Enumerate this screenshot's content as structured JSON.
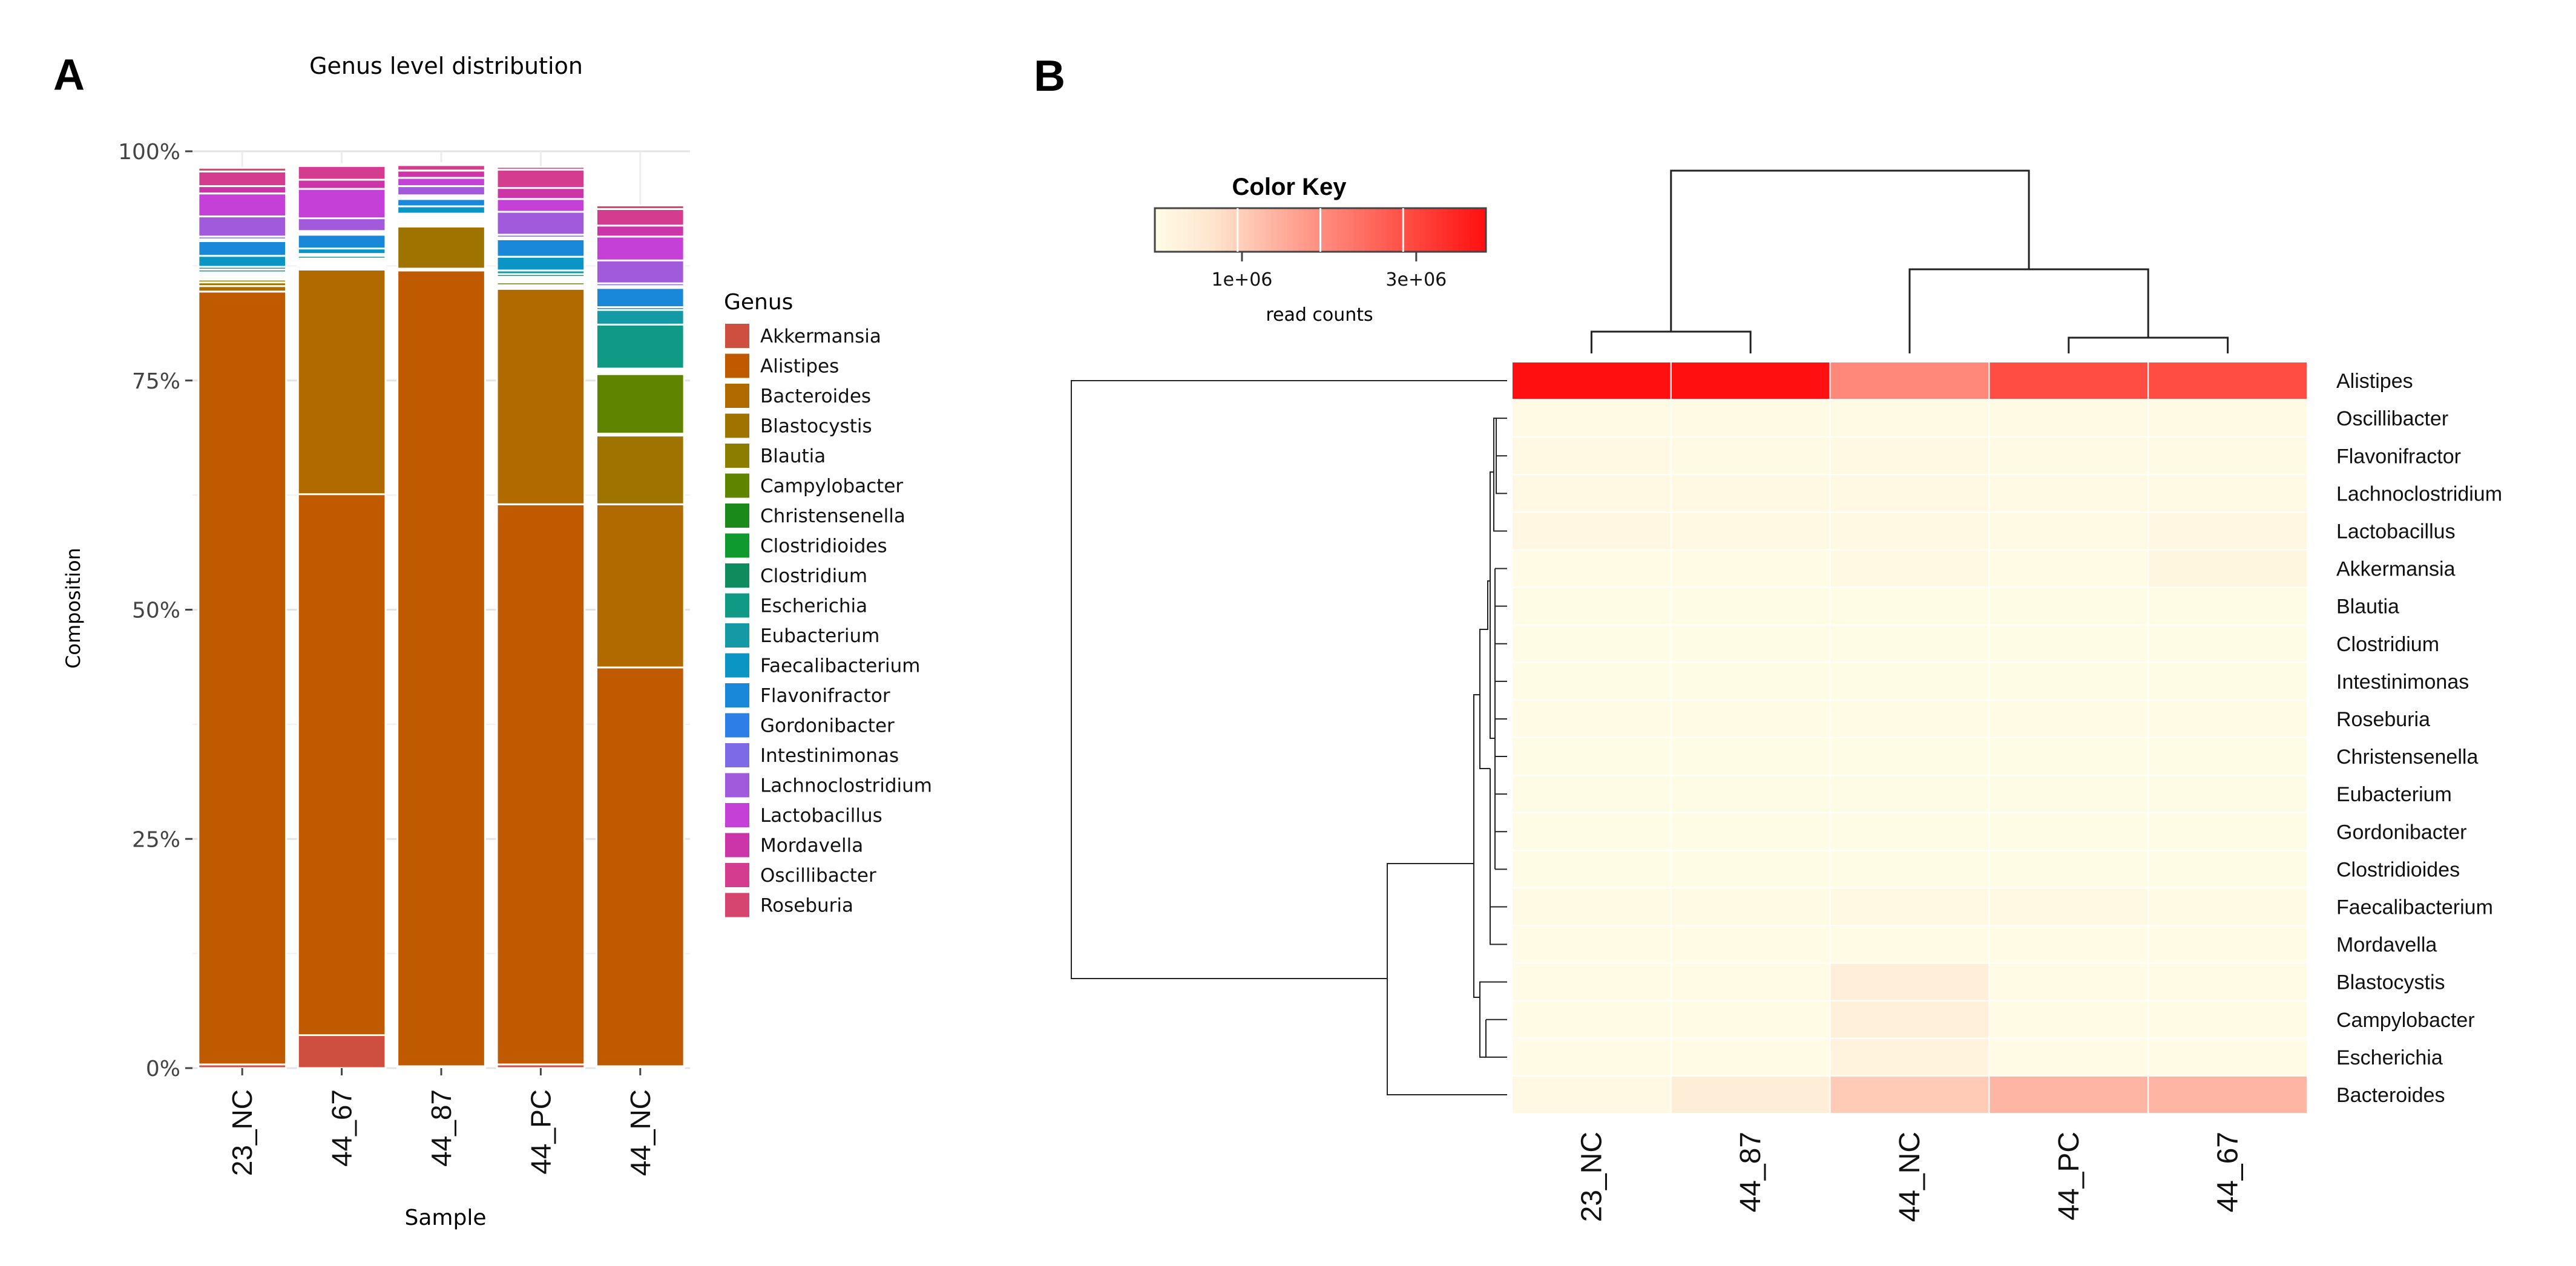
{
  "panel_labels": {
    "a": "A",
    "b": "B"
  },
  "chart_data": [
    {
      "type": "bar",
      "stacked": true,
      "title": "Genus  level distribution",
      "xlabel": "Sample",
      "ylabel": "Composition",
      "ylim": [
        0,
        1
      ],
      "yticks": [
        0,
        0.25,
        0.5,
        0.75,
        1.0
      ],
      "ytick_labels": [
        "0%",
        "25%",
        "50%",
        "75%",
        "100%"
      ],
      "grid": true,
      "legend_position": "right",
      "legend_title": "Genus",
      "categories": [
        "23_NC",
        "44_67",
        "44_87",
        "44_PC",
        "44_NC"
      ],
      "series": [
        {
          "name": "Akkermansia",
          "color": "#CE4E3F",
          "values": [
            0.004,
            0.036,
            0.002,
            0.004,
            0.002
          ]
        },
        {
          "name": "Alistipes",
          "color": "#C05A00",
          "values": [
            0.843,
            0.59,
            0.868,
            0.611,
            0.435
          ]
        },
        {
          "name": "Bacteroides",
          "color": "#B06A00",
          "values": [
            0.006,
            0.245,
            0.002,
            0.235,
            0.178
          ]
        },
        {
          "name": "Blastocystis",
          "color": "#9E7300",
          "values": [
            0.004,
            0.002,
            0.046,
            0.002,
            0.075
          ]
        },
        {
          "name": "Blautia",
          "color": "#8C7D00",
          "values": [
            0.003,
            0.002,
            0.002,
            0.002,
            0.002
          ]
        },
        {
          "name": "Campylobacter",
          "color": "#5F8400",
          "values": [
            0.002,
            0.002,
            0.002,
            0.003,
            0.065
          ]
        },
        {
          "name": "Christensenella",
          "color": "#1A8A1A",
          "values": [
            0.002,
            0.002,
            0.002,
            0.002,
            0.002
          ]
        },
        {
          "name": "Clostridioides",
          "color": "#0E9A2E",
          "values": [
            0.002,
            0.002,
            0.002,
            0.002,
            0.002
          ]
        },
        {
          "name": "Clostridium",
          "color": "#0F8C5E",
          "values": [
            0.002,
            0.002,
            0.002,
            0.002,
            0.002
          ]
        },
        {
          "name": "Escherichia",
          "color": "#0E9A84",
          "values": [
            0.003,
            0.003,
            0.002,
            0.003,
            0.048
          ]
        },
        {
          "name": "Eubacterium",
          "color": "#139AA4",
          "values": [
            0.003,
            0.002,
            0.002,
            0.004,
            0.016
          ]
        },
        {
          "name": "Faecalibacterium",
          "color": "#0B95C5",
          "values": [
            0.012,
            0.006,
            0.008,
            0.015,
            0.003
          ]
        },
        {
          "name": "Flavonifractor",
          "color": "#1A88D8",
          "values": [
            0.016,
            0.015,
            0.008,
            0.019,
            0.021
          ]
        },
        {
          "name": "Gordonibacter",
          "color": "#2B7FE6",
          "values": [
            0.002,
            0.002,
            0.002,
            0.002,
            0.002
          ]
        },
        {
          "name": "Intestinimonas",
          "color": "#7C6BE4",
          "values": [
            0.003,
            0.002,
            0.002,
            0.003,
            0.003
          ]
        },
        {
          "name": "Lachnoclostridium",
          "color": "#A25ADD",
          "values": [
            0.022,
            0.014,
            0.01,
            0.025,
            0.025
          ]
        },
        {
          "name": "Lactobacillus",
          "color": "#C440D6",
          "values": [
            0.025,
            0.032,
            0.009,
            0.014,
            0.026
          ]
        },
        {
          "name": "Mordavella",
          "color": "#CC35A8",
          "values": [
            0.008,
            0.01,
            0.008,
            0.012,
            0.012
          ]
        },
        {
          "name": "Oscillibacter",
          "color": "#D43D8F",
          "values": [
            0.016,
            0.015,
            0.006,
            0.02,
            0.018
          ]
        },
        {
          "name": "Roseburia",
          "color": "#D64570",
          "values": [
            0.004,
            0.002,
            0.002,
            0.003,
            0.004
          ]
        }
      ]
    },
    {
      "type": "heatmap",
      "legend_title": "Color Key",
      "colorbar_label": "read counts",
      "colorbar_ticks": [
        1000000,
        3000000
      ],
      "colorbar_tick_labels": [
        "1e+06",
        "3e+06"
      ],
      "colorbar_range": [
        0,
        3800000
      ],
      "columns": [
        "23_NC",
        "44_87",
        "44_NC",
        "44_PC",
        "44_67"
      ],
      "rows": [
        "Alistipes",
        "Oscillibacter",
        "Flavonifractor",
        "Lachnoclostridium",
        "Lactobacillus",
        "Akkermansia",
        "Blautia",
        "Clostridium",
        "Intestinimonas",
        "Roseburia",
        "Christensenella",
        "Eubacterium",
        "Gordonibacter",
        "Clostridioides",
        "Faecalibacterium",
        "Mordavella",
        "Blastocystis",
        "Campylobacter",
        "Escherichia",
        "Bacteroides"
      ],
      "values": [
        [
          3800000,
          3800000,
          2000000,
          2900000,
          2900000
        ],
        [
          70000,
          70000,
          70000,
          60000,
          60000
        ],
        [
          80000,
          70000,
          80000,
          60000,
          60000
        ],
        [
          100000,
          90000,
          100000,
          60000,
          60000
        ],
        [
          130000,
          110000,
          80000,
          60000,
          130000
        ],
        [
          30000,
          30000,
          120000,
          30000,
          170000
        ],
        [
          10000,
          10000,
          10000,
          10000,
          10000
        ],
        [
          10000,
          10000,
          10000,
          10000,
          10000
        ],
        [
          10000,
          10000,
          10000,
          10000,
          10000
        ],
        [
          20000,
          20000,
          20000,
          20000,
          20000
        ],
        [
          10000,
          10000,
          10000,
          10000,
          10000
        ],
        [
          10000,
          10000,
          10000,
          10000,
          10000
        ],
        [
          10000,
          10000,
          10000,
          10000,
          10000
        ],
        [
          10000,
          10000,
          10000,
          10000,
          10000
        ],
        [
          60000,
          50000,
          90000,
          120000,
          60000
        ],
        [
          20000,
          30000,
          40000,
          20000,
          20000
        ],
        [
          20000,
          20000,
          380000,
          20000,
          20000
        ],
        [
          20000,
          20000,
          350000,
          20000,
          20000
        ],
        [
          30000,
          20000,
          250000,
          20000,
          20000
        ],
        [
          100000,
          400000,
          1050000,
          1350000,
          1350000
        ]
      ]
    }
  ]
}
